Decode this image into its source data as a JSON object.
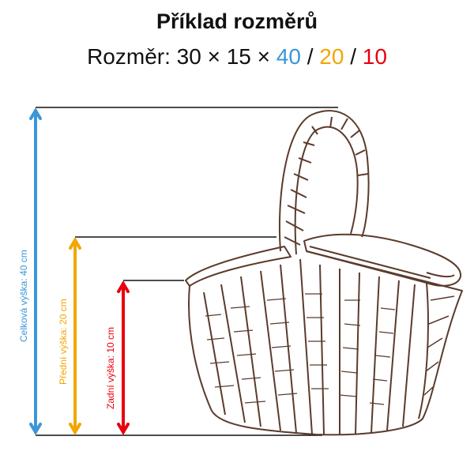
{
  "title": "Příklad rozměrů",
  "subtitle": {
    "prefix": "Rozměr: 30 × 15 × ",
    "total": "40",
    "sep1": " / ",
    "front": "20",
    "sep2": " / ",
    "back": "10"
  },
  "dimensions": {
    "total_label": "Celková výška: 40 cm",
    "front_label": "Přední výška: 20 cm",
    "back_label": "Zadní výška: 10 cm"
  },
  "colors": {
    "total": "#3a96d8",
    "front": "#f2a600",
    "back": "#e8000e",
    "sketch": "#5b3b2c"
  }
}
